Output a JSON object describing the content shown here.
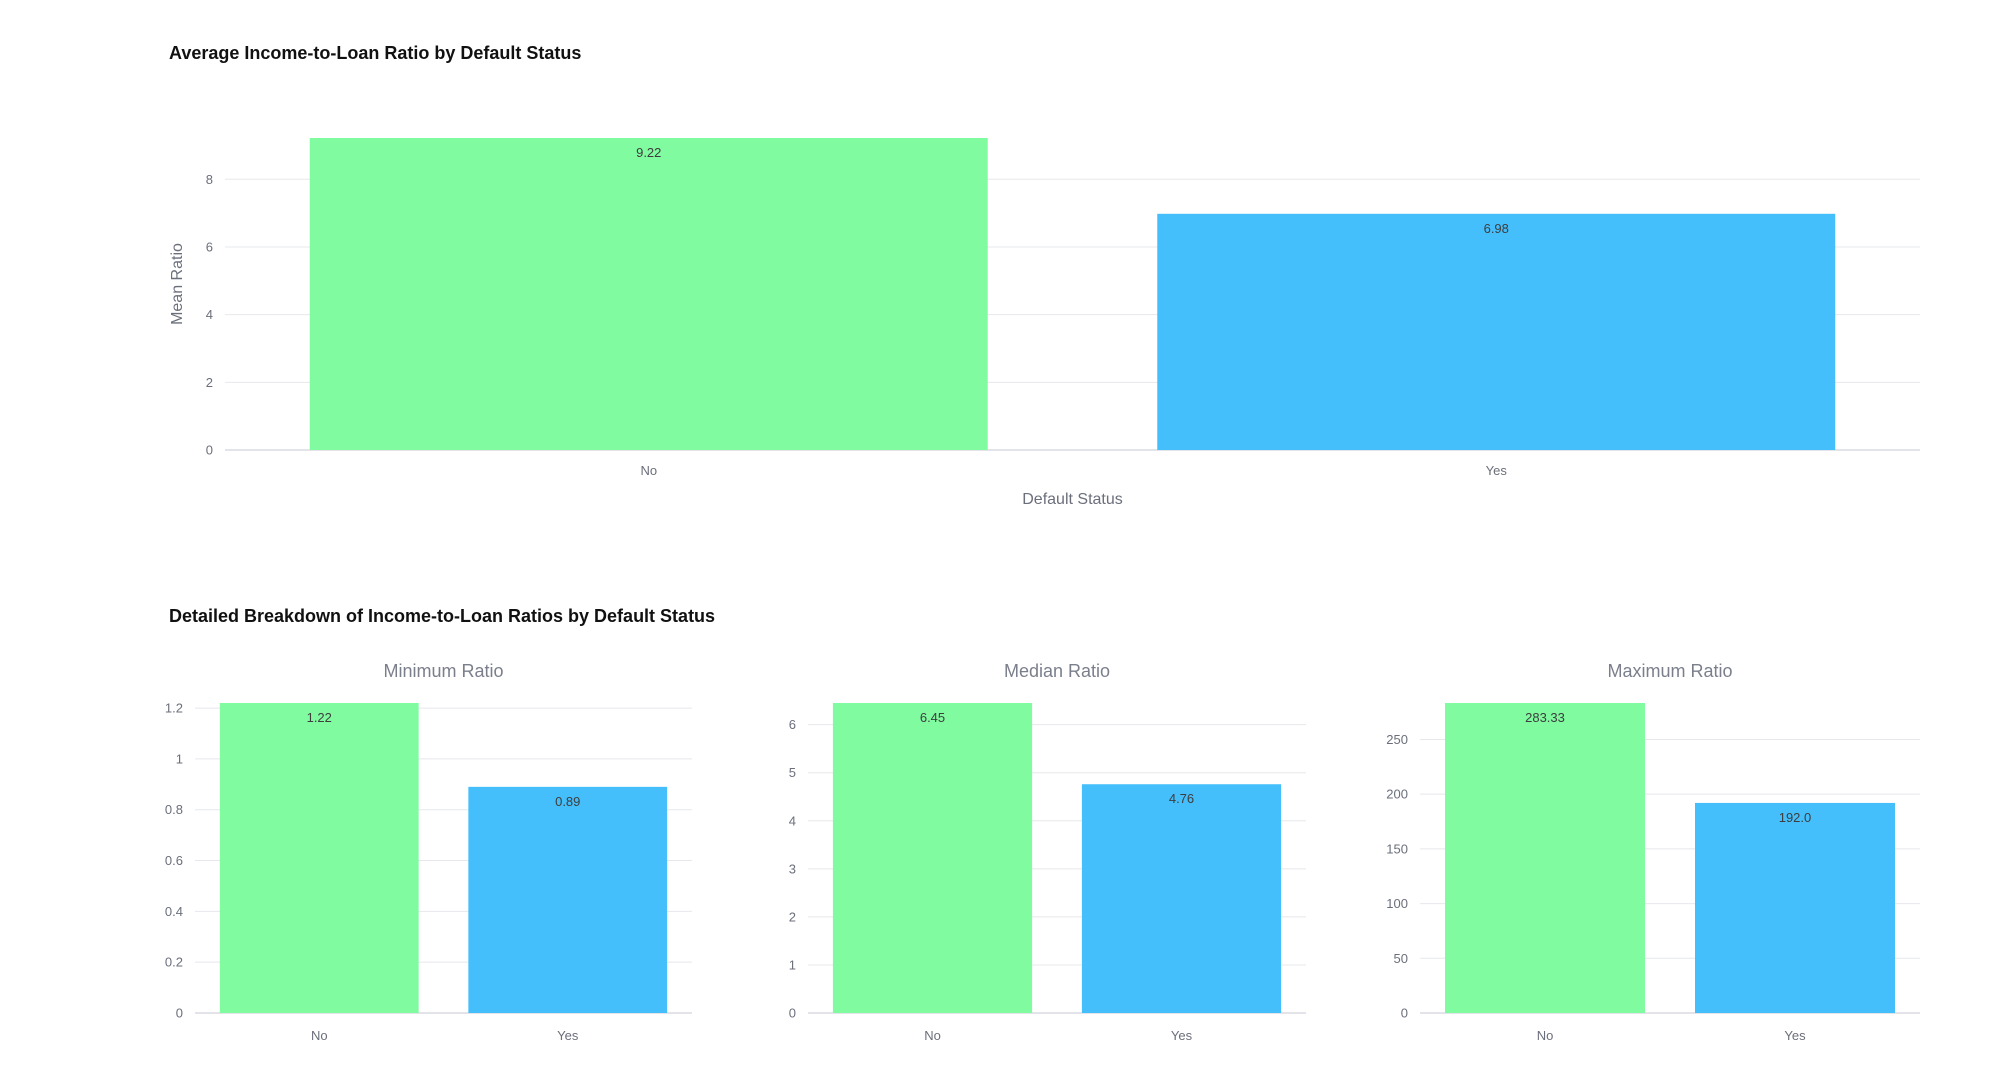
{
  "main_chart_title": "Average Income-to-Loan Ratio by Default Status",
  "detail_section_title": "Detailed Breakdown of Income-to-Loan Ratios by Default Status",
  "colors": {
    "no": "#80fba0",
    "yes": "#45bffb"
  },
  "chart_data": [
    {
      "type": "bar",
      "categories": [
        "No",
        "Yes"
      ],
      "values": [
        9.22,
        6.98
      ],
      "value_labels": [
        "9.22",
        "6.98"
      ],
      "title": "Average Income-to-Loan Ratio by Default Status",
      "xlabel": "Default Status",
      "ylabel": "Mean Ratio",
      "ylim": [
        0,
        9.22
      ],
      "yticks": [
        0,
        2,
        4,
        6,
        8
      ],
      "ytick_labels": [
        "0",
        "2",
        "4",
        "6",
        "8"
      ],
      "grid": true
    },
    {
      "type": "bar",
      "categories": [
        "No",
        "Yes"
      ],
      "values": [
        1.22,
        0.89
      ],
      "value_labels": [
        "1.22",
        "0.89"
      ],
      "title": "Minimum Ratio",
      "ylim": [
        0,
        1.22
      ],
      "yticks": [
        0,
        0.2,
        0.4,
        0.6,
        0.8,
        1,
        1.2
      ],
      "ytick_labels": [
        "0",
        "0.2",
        "0.4",
        "0.6",
        "0.8",
        "1",
        "1.2"
      ],
      "grid": true
    },
    {
      "type": "bar",
      "categories": [
        "No",
        "Yes"
      ],
      "values": [
        6.45,
        4.76
      ],
      "value_labels": [
        "6.45",
        "4.76"
      ],
      "title": "Median Ratio",
      "ylim": [
        0,
        6.45
      ],
      "yticks": [
        0,
        1,
        2,
        3,
        4,
        5,
        6
      ],
      "ytick_labels": [
        "0",
        "1",
        "2",
        "3",
        "4",
        "5",
        "6"
      ],
      "grid": true
    },
    {
      "type": "bar",
      "categories": [
        "No",
        "Yes"
      ],
      "values": [
        283.33,
        192.0
      ],
      "value_labels": [
        "283.33",
        "192.0"
      ],
      "title": "Maximum Ratio",
      "ylim": [
        0,
        283.33
      ],
      "yticks": [
        0,
        50,
        100,
        150,
        200,
        250
      ],
      "ytick_labels": [
        "0",
        "50",
        "100",
        "150",
        "200",
        "250"
      ],
      "grid": true
    }
  ]
}
